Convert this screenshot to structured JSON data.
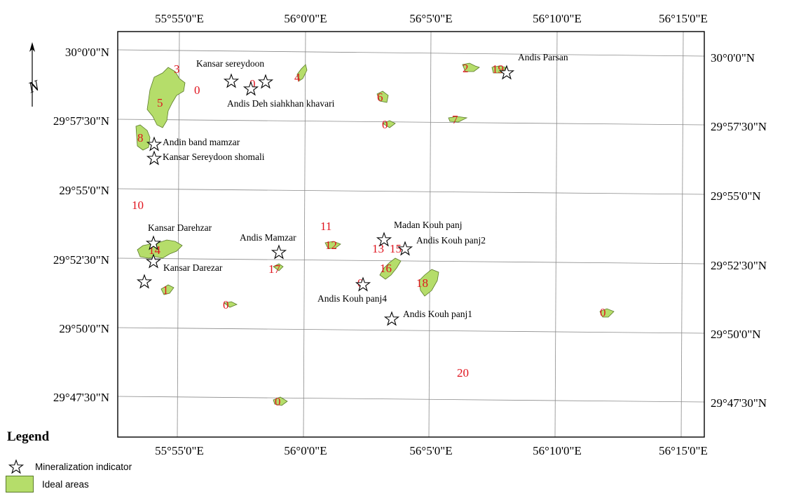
{
  "map": {
    "lon_labels": [
      "55°55'0\"E",
      "56°0'0\"E",
      "56°5'0\"E",
      "56°10'0\"E",
      "56°15'0\"E"
    ],
    "lat_labels": [
      "30°0'0\"N",
      "29°57'30\"N",
      "29°55'0\"N",
      "29°52'30\"N",
      "29°50'0\"N",
      "29°47'30\"N"
    ],
    "north_symbol": "N",
    "sites": [
      {
        "name": "Kansar sereydoon"
      },
      {
        "name": "Andis Deh siahkhan khavari"
      },
      {
        "name": "Andis Parsan"
      },
      {
        "name": "Andin band mamzar"
      },
      {
        "name": "Kansar Sereydoon shomali"
      },
      {
        "name": "Kansar Darehzar"
      },
      {
        "name": "Kansar Darezar"
      },
      {
        "name": "Andis Mamzar"
      },
      {
        "name": "Madan Kouh panj"
      },
      {
        "name": "Andis Kouh panj2"
      },
      {
        "name": "Andis Kouh panj4"
      },
      {
        "name": "Andis Kouh panj1"
      }
    ],
    "zone_labels": [
      "3",
      "0",
      "4",
      "5",
      "6",
      "2",
      "19",
      "0",
      "7",
      "8",
      "10",
      "11",
      "12",
      "13",
      "15",
      "16",
      "17",
      "14",
      "1",
      "0",
      "0",
      "18",
      "0",
      "20",
      "0",
      "0"
    ]
  },
  "legend": {
    "title": "Legend",
    "items": [
      {
        "label": "Mineralization indicator",
        "icon": "star-icon"
      },
      {
        "label": "Ideal areas",
        "color": "#b5dd6a"
      }
    ]
  }
}
